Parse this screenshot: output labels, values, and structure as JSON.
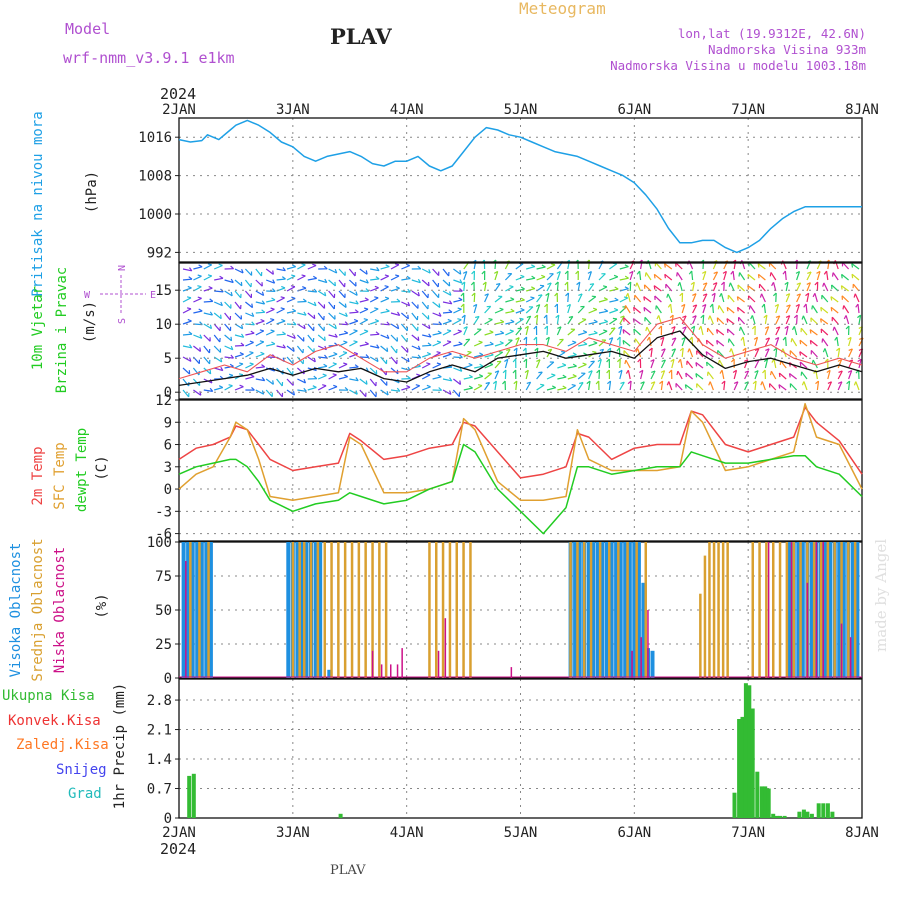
{
  "header": {
    "model_label": "Model",
    "model_name": "wrf-nmm_v3.9.1  e1km",
    "station": "PLAV",
    "meteogram_label": "Meteogram",
    "lonlat": "lon,lat (19.9312E, 42.6N)",
    "altitude": "Nadmorska Visina 933m",
    "model_altitude": "Nadmorska Visina u modelu 1003.18m",
    "year_top": "2024",
    "year_bottom": "2024",
    "footer_station": "PLAV",
    "credit": "made by Angel"
  },
  "colors": {
    "pressure": "#1ea0e6",
    "temp2m": "#ee4444",
    "sfctemp": "#e0a030",
    "dewpt": "#22cc22",
    "high_cloud": "#1e90e0",
    "mid_cloud": "#d9a030",
    "low_cloud": "#cc1188",
    "total_precip": "#33bb33",
    "conv_precip": "#ee3333",
    "frozen_precip": "#ff7722",
    "snow": "#4444ee",
    "hail": "#22bbbb",
    "purple_text": "#b050d0",
    "orange_text": "#e8b860",
    "grid": "#888888"
  },
  "chart_data": [
    {
      "type": "line",
      "name": "pressure",
      "ylabel_lines": [
        "Pritisak na nivou mora",
        "(hPa)"
      ],
      "xlabels": [
        "2JAN",
        "3JAN",
        "4JAN",
        "5JAN",
        "6JAN",
        "7JAN",
        "8JAN"
      ],
      "yticks": [
        992,
        1000,
        1008,
        1016
      ],
      "ylim": [
        990,
        1020
      ],
      "grid": true,
      "x": [
        0,
        0.1,
        0.2,
        0.25,
        0.35,
        0.45,
        0.5,
        0.6,
        0.7,
        0.8,
        0.9,
        1.0,
        1.1,
        1.2,
        1.3,
        1.4,
        1.5,
        1.6,
        1.7,
        1.8,
        1.9,
        2.0,
        2.1,
        2.2,
        2.3,
        2.4,
        2.5,
        2.6,
        2.7,
        2.8,
        2.9,
        3.0,
        3.1,
        3.2,
        3.3,
        3.4,
        3.5,
        3.6,
        3.7,
        3.8,
        3.9,
        4.0,
        4.1,
        4.2,
        4.3,
        4.4,
        4.5,
        4.6,
        4.7,
        4.8,
        4.9,
        5.0,
        5.1,
        5.2,
        5.3,
        5.4,
        5.5,
        5.6,
        5.7,
        5.8,
        5.9,
        6.0
      ],
      "values": [
        1015.5,
        1015,
        1015.3,
        1016.5,
        1015.5,
        1017.5,
        1018.5,
        1019.5,
        1018.5,
        1017,
        1015,
        1014,
        1012,
        1011,
        1012,
        1012.5,
        1013,
        1012,
        1010.5,
        1010,
        1011,
        1011,
        1012,
        1010,
        1009,
        1010,
        1013,
        1016,
        1018,
        1017.5,
        1016.5,
        1016,
        1015,
        1014,
        1013,
        1012.5,
        1012,
        1011,
        1010,
        1009,
        1008,
        1006.5,
        1004,
        1001,
        997,
        994,
        994,
        994.5,
        994.5,
        993,
        992,
        993,
        994.5,
        997,
        999,
        1000.5,
        1001.5,
        1001.5,
        1001.5,
        1001.5,
        1001.5,
        1001.5
      ]
    },
    {
      "type": "line",
      "name": "wind",
      "ylabel_lines": [
        "10m Vjetar",
        "Brzina i Pravac",
        "(m/s)"
      ],
      "compass": [
        "N",
        "W",
        "E",
        "S"
      ],
      "yticks": [
        0,
        5,
        10,
        15
      ],
      "ylim": [
        -1,
        19
      ],
      "grid": true,
      "x": [
        0,
        0.2,
        0.4,
        0.6,
        0.8,
        1.0,
        1.2,
        1.4,
        1.6,
        1.8,
        2.0,
        2.2,
        2.4,
        2.6,
        2.8,
        3.0,
        3.2,
        3.4,
        3.6,
        3.8,
        4.0,
        4.2,
        4.4,
        4.6,
        4.8,
        5.0,
        5.2,
        5.4,
        5.6,
        5.8,
        6.0
      ],
      "series": [
        {
          "values": [
            1,
            1.5,
            2,
            2.5,
            3.5,
            2.5,
            3.5,
            3,
            3.5,
            2,
            1.5,
            3,
            4,
            3,
            5,
            5.5,
            6,
            5,
            5.5,
            6,
            5,
            8,
            9,
            5.5,
            3.5,
            4.5,
            5,
            4,
            3,
            4,
            3
          ]
        },
        {
          "values": [
            2,
            3,
            4,
            3,
            5.5,
            4,
            6,
            7,
            5,
            3,
            3,
            5,
            6,
            5,
            6,
            7,
            7,
            6,
            8,
            7,
            6,
            10,
            11,
            7,
            5,
            6,
            7,
            5,
            4,
            5,
            4
          ]
        }
      ]
    },
    {
      "type": "line",
      "name": "temperature",
      "ylabel_lines": [
        "2m Temp",
        "SFC Temp",
        "dewpt Temp",
        "(C)"
      ],
      "yticks": [
        -6,
        -3,
        0,
        3,
        6,
        9,
        12
      ],
      "ylim": [
        -7,
        12
      ],
      "grid": true,
      "x": [
        0,
        0.15,
        0.3,
        0.45,
        0.5,
        0.6,
        0.7,
        0.8,
        1.0,
        1.2,
        1.4,
        1.5,
        1.6,
        1.8,
        2.0,
        2.2,
        2.4,
        2.5,
        2.6,
        2.8,
        3.0,
        3.2,
        3.4,
        3.5,
        3.6,
        3.8,
        4.0,
        4.2,
        4.4,
        4.5,
        4.6,
        4.8,
        5.0,
        5.2,
        5.4,
        5.5,
        5.6,
        5.8,
        6.0
      ],
      "series": [
        {
          "name": "2m Temp",
          "values": [
            4,
            5.5,
            6,
            7,
            8.5,
            8,
            6,
            4,
            2.5,
            3,
            3.5,
            7.5,
            6.5,
            4,
            4.5,
            5.5,
            6,
            9,
            8.5,
            5,
            1.5,
            2,
            3,
            7.5,
            7,
            4,
            5.5,
            6,
            6,
            10.5,
            10,
            6,
            5,
            6,
            7,
            11,
            9,
            6.5,
            2
          ]
        },
        {
          "name": "SFC Temp",
          "values": [
            0,
            2,
            3,
            7,
            9,
            8,
            4,
            -1,
            -1.5,
            -1,
            -0.5,
            7,
            6,
            -0.5,
            -0.5,
            0,
            1,
            9.5,
            8,
            1,
            -1.5,
            -1.5,
            -1,
            8,
            4,
            2.5,
            2.5,
            2.5,
            3,
            10.5,
            9,
            2.5,
            3,
            4,
            5,
            11.5,
            7,
            6,
            0
          ]
        },
        {
          "name": "dewpt Temp",
          "values": [
            2,
            3,
            3.5,
            4,
            4,
            3,
            1,
            -1.5,
            -3,
            -2,
            -1.5,
            -0.5,
            -1,
            -2,
            -1.5,
            0,
            1,
            6,
            5,
            0,
            -3,
            -6,
            -2.5,
            3,
            3,
            2,
            2.5,
            3,
            3,
            5,
            4.5,
            3.5,
            3.5,
            4,
            4.5,
            4.5,
            3,
            2,
            -1
          ]
        }
      ]
    },
    {
      "type": "bar",
      "name": "cloudiness",
      "ylabel_lines": [
        "Visoka Oblacnost",
        "Srednja Oblacnost",
        "Niska Oblacnost",
        "(%)"
      ],
      "yticks": [
        0,
        25,
        50,
        75,
        100
      ],
      "ylim": [
        0,
        100
      ],
      "grid": true,
      "series": [
        {
          "name": "Visoka Oblacnost",
          "x": [
            0.04,
            0.08,
            0.12,
            0.16,
            0.2,
            0.24,
            0.28,
            0.96,
            1.0,
            1.04,
            1.08,
            1.12,
            1.16,
            1.2,
            1.24,
            1.32,
            3.44,
            3.48,
            3.52,
            3.56,
            3.6,
            3.64,
            3.68,
            3.72,
            3.76,
            3.8,
            3.84,
            3.88,
            3.92,
            3.96,
            4.0,
            4.04,
            4.08,
            4.12,
            4.16,
            5.36,
            5.4,
            5.44,
            5.48,
            5.52,
            5.56,
            5.6,
            5.64,
            5.68,
            5.72,
            5.76,
            5.8,
            5.84,
            5.88,
            5.92,
            5.96
          ],
          "values": [
            100,
            100,
            100,
            100,
            100,
            100,
            100,
            100,
            100,
            100,
            100,
            100,
            100,
            100,
            100,
            6,
            100,
            100,
            100,
            100,
            100,
            100,
            100,
            100,
            100,
            100,
            100,
            100,
            100,
            100,
            100,
            100,
            70,
            22,
            20,
            100,
            100,
            100,
            100,
            100,
            100,
            100,
            100,
            100,
            100,
            100,
            100,
            100,
            100,
            100,
            100
          ]
        },
        {
          "name": "Srednja Oblacnost",
          "x": [
            0.1,
            0.18,
            0.26,
            1.0,
            1.06,
            1.1,
            1.16,
            1.22,
            1.28,
            1.34,
            1.4,
            1.46,
            1.52,
            1.58,
            1.64,
            1.7,
            1.76,
            1.82,
            2.2,
            2.26,
            2.32,
            2.38,
            2.44,
            2.5,
            2.56,
            3.44,
            3.5,
            3.56,
            3.62,
            3.7,
            3.78,
            3.86,
            3.94,
            4.02,
            4.1,
            4.58,
            4.62,
            4.66,
            4.7,
            4.74,
            4.78,
            4.82,
            5.04,
            5.1,
            5.16,
            5.22,
            5.28,
            5.34,
            5.4,
            5.46,
            5.52,
            5.58,
            5.64,
            5.7,
            5.76,
            5.82,
            5.88,
            5.94
          ],
          "values": [
            100,
            100,
            100,
            100,
            100,
            100,
            100,
            100,
            100,
            100,
            100,
            100,
            100,
            100,
            100,
            100,
            100,
            100,
            100,
            100,
            100,
            100,
            100,
            100,
            100,
            100,
            100,
            100,
            100,
            100,
            100,
            100,
            100,
            100,
            100,
            62,
            90,
            100,
            100,
            100,
            100,
            100,
            100,
            100,
            100,
            100,
            100,
            100,
            100,
            100,
            100,
            100,
            100,
            100,
            100,
            100,
            100,
            100
          ]
        },
        {
          "name": "Niska Oblacnost",
          "x": [
            0.06,
            1.7,
            1.78,
            1.86,
            1.92,
            1.96,
            2.28,
            2.34,
            2.92,
            3.98,
            4.06,
            4.12,
            5.18,
            5.38,
            5.52,
            5.6,
            5.66,
            5.82,
            5.9
          ],
          "values": [
            86,
            20,
            10,
            10,
            10,
            22,
            20,
            44,
            8,
            20,
            30,
            50,
            100,
            100,
            70,
            100,
            100,
            40,
            30
          ]
        }
      ]
    },
    {
      "type": "bar",
      "name": "precipitation",
      "ylabel_lines": [
        "1hr Precip (mm)"
      ],
      "legend": [
        "Ukupna Kisa",
        "Konvek.Kisa",
        "Zaledj.Kisa",
        "Snijeg",
        "Grad"
      ],
      "xlabels": [
        "2JAN",
        "3JAN",
        "4JAN",
        "5JAN",
        "6JAN",
        "7JAN",
        "8JAN"
      ],
      "yticks": [
        0,
        0.7,
        1.4,
        2.1,
        2.8
      ],
      "ylim": [
        0,
        3.3
      ],
      "grid": true,
      "x": [
        0.09,
        0.13,
        1.42,
        4.88,
        4.92,
        4.95,
        4.98,
        5.01,
        5.04,
        5.08,
        5.12,
        5.15,
        5.18,
        5.22,
        5.25,
        5.28,
        5.32,
        5.45,
        5.49,
        5.52,
        5.56,
        5.62,
        5.66,
        5.7,
        5.74
      ],
      "values": [
        1.0,
        1.05,
        0.1,
        0.6,
        2.35,
        2.4,
        3.2,
        3.15,
        2.6,
        1.1,
        0.75,
        0.75,
        0.7,
        0.1,
        0.05,
        0.05,
        0.05,
        0.15,
        0.2,
        0.15,
        0.1,
        0.35,
        0.35,
        0.35,
        0.15
      ]
    }
  ]
}
